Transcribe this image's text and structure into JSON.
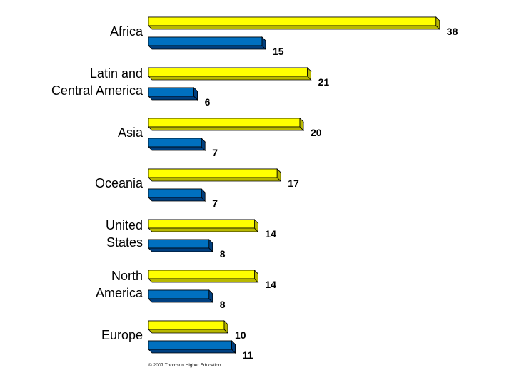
{
  "chart_data": {
    "type": "bar",
    "orientation": "horizontal",
    "categories": [
      "Africa",
      "Latin and Central America",
      "Asia",
      "Oceania",
      "United States",
      "North America",
      "Europe"
    ],
    "category_lines": [
      [
        "Africa"
      ],
      [
        "Latin and",
        "Central America"
      ],
      [
        "Asia"
      ],
      [
        "Oceania"
      ],
      [
        "United",
        "States"
      ],
      [
        "North",
        "America"
      ],
      [
        "Europe"
      ]
    ],
    "series": [
      {
        "values": [
          38,
          21,
          20,
          17,
          14,
          14,
          10
        ]
      },
      {
        "values": [
          15,
          6,
          7,
          7,
          8,
          8,
          11
        ]
      }
    ],
    "xlim": [
      0,
      38
    ],
    "grid": false,
    "legend": "none",
    "colors": {
      "series_front": [
        "#ffff00",
        "#0070c0"
      ],
      "series_side": [
        "#b8b800",
        "#003f7f"
      ],
      "outline": "#000000",
      "text": "#000000"
    }
  },
  "credit": "© 2007 Thomson Higher Education"
}
